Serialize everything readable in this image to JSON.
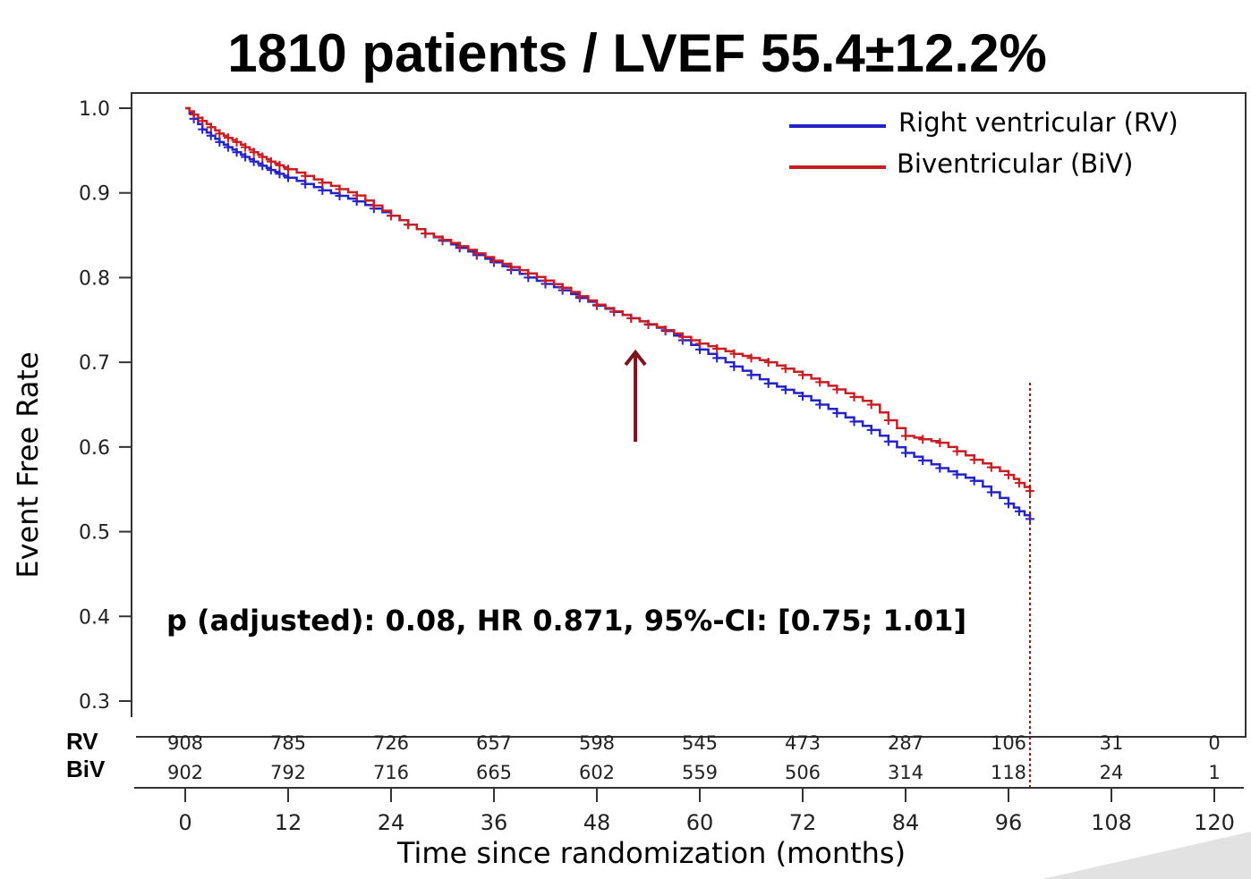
{
  "chart_data": {
    "type": "line",
    "title": "1810 patients / LVEF 55.4±12.2%",
    "xlabel": "Time since randomization (months)",
    "ylabel": "Event Free Rate",
    "x_ticks": [
      0,
      12,
      24,
      36,
      48,
      60,
      72,
      84,
      96,
      108,
      120
    ],
    "y_ticks": [
      0.3,
      0.4,
      0.5,
      0.6,
      0.7,
      0.8,
      0.9,
      1.0
    ],
    "y_tick_labels": [
      "0.3",
      "0.4",
      "0.5",
      "0.6",
      "0.7",
      "0.8",
      "0.9",
      "1.0"
    ],
    "xlim": [
      0,
      120
    ],
    "ylim": [
      0.3,
      1.0
    ],
    "grid": false,
    "legend_position": "top-right",
    "series": [
      {
        "name": "Right ventricular (RV)",
        "color": "#2323c8",
        "x": [
          0,
          2,
          4,
          6,
          8,
          10,
          12,
          16,
          20,
          24,
          28,
          32,
          36,
          40,
          44,
          48,
          52,
          56,
          60,
          64,
          68,
          72,
          76,
          80,
          84,
          88,
          92,
          96,
          98.5
        ],
        "y": [
          1.0,
          0.975,
          0.96,
          0.948,
          0.937,
          0.927,
          0.918,
          0.903,
          0.89,
          0.873,
          0.852,
          0.835,
          0.818,
          0.8,
          0.785,
          0.767,
          0.752,
          0.737,
          0.715,
          0.695,
          0.675,
          0.66,
          0.64,
          0.62,
          0.593,
          0.575,
          0.56,
          0.533,
          0.515
        ]
      },
      {
        "name": "Biventricular (BiV)",
        "color": "#c81e23",
        "x": [
          0,
          2,
          4,
          6,
          8,
          10,
          12,
          16,
          20,
          24,
          28,
          32,
          36,
          40,
          44,
          48,
          52,
          56,
          60,
          64,
          68,
          72,
          76,
          80,
          84,
          88,
          92,
          96,
          98.5
        ],
        "y": [
          1.0,
          0.985,
          0.97,
          0.96,
          0.948,
          0.937,
          0.928,
          0.912,
          0.897,
          0.873,
          0.852,
          0.837,
          0.82,
          0.805,
          0.788,
          0.768,
          0.752,
          0.738,
          0.722,
          0.71,
          0.7,
          0.685,
          0.668,
          0.65,
          0.613,
          0.605,
          0.585,
          0.567,
          0.548
        ]
      }
    ],
    "annotations": [
      "p (adjusted): 0.08, HR 0.871, 95%-CI: [0.75; 1.01]"
    ],
    "cutoff_x": 98.5,
    "arrow_at_x": 55,
    "at_risk": {
      "rows": [
        {
          "label": "RV",
          "values": [
            "908",
            "785",
            "726",
            "657",
            "598",
            "545",
            "473",
            "287",
            "106",
            "31",
            "0"
          ]
        },
        {
          "label": "BiV",
          "values": [
            "902",
            "792",
            "716",
            "665",
            "602",
            "559",
            "506",
            "314",
            "118",
            "24",
            "1"
          ]
        }
      ]
    }
  }
}
